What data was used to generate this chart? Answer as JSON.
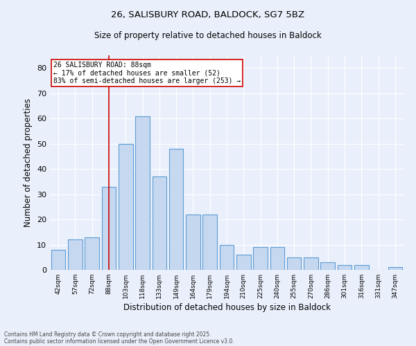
{
  "title1": "26, SALISBURY ROAD, BALDOCK, SG7 5BZ",
  "title2": "Size of property relative to detached houses in Baldock",
  "xlabel": "Distribution of detached houses by size in Baldock",
  "ylabel": "Number of detached properties",
  "categories": [
    "42sqm",
    "57sqm",
    "72sqm",
    "88sqm",
    "103sqm",
    "118sqm",
    "133sqm",
    "149sqm",
    "164sqm",
    "179sqm",
    "194sqm",
    "210sqm",
    "225sqm",
    "240sqm",
    "255sqm",
    "270sqm",
    "286sqm",
    "301sqm",
    "316sqm",
    "331sqm",
    "347sqm"
  ],
  "values": [
    8,
    12,
    13,
    33,
    50,
    61,
    37,
    48,
    22,
    22,
    10,
    6,
    9,
    9,
    5,
    5,
    3,
    2,
    2,
    0,
    1
  ],
  "bar_color": "#c5d8f0",
  "bar_edge_color": "#5b9bd5",
  "bg_color": "#eaf0fb",
  "grid_color": "#ffffff",
  "annotation_title": "26 SALISBURY ROAD: 88sqm",
  "annotation_line1": "← 17% of detached houses are smaller (52)",
  "annotation_line2": "83% of semi-detached houses are larger (253) →",
  "annotation_box_color": "#ffffff",
  "annotation_box_edge": "#cc0000",
  "ref_line_color": "#cc0000",
  "footnote1": "Contains HM Land Registry data © Crown copyright and database right 2025.",
  "footnote2": "Contains public sector information licensed under the Open Government Licence v3.0.",
  "ylim": [
    0,
    85
  ],
  "yticks": [
    0,
    10,
    20,
    30,
    40,
    50,
    60,
    70,
    80
  ]
}
